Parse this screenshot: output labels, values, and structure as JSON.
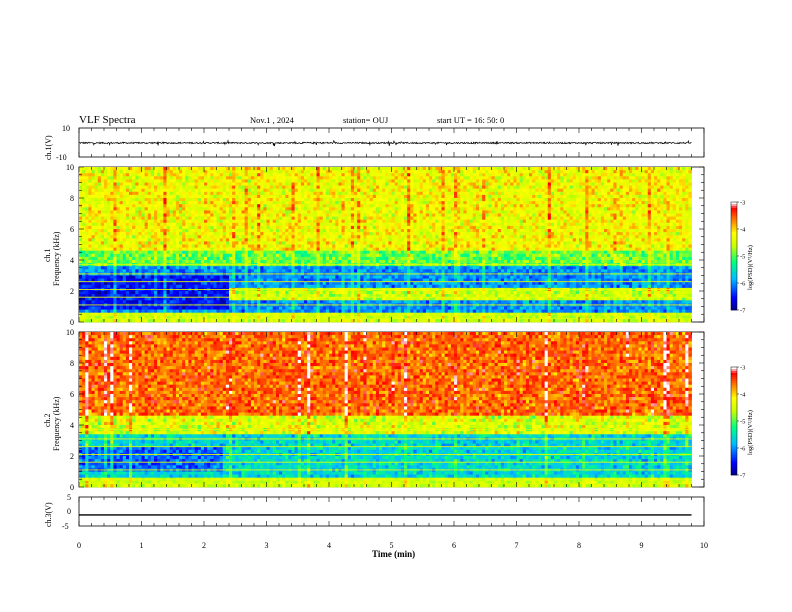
{
  "header": {
    "title": "VLF Spectra",
    "date": "Nov.1 , 2024",
    "station": "station= OUJ",
    "start": "start UT = 16: 50: 0"
  },
  "chart_data": [
    {
      "type": "line",
      "title": "",
      "ylabel": "ch.1(V)",
      "ylim": [
        -10,
        10
      ],
      "y_tick_labels": [
        "10",
        "-10"
      ],
      "description_values": {
        "baseline": -0.3,
        "amplitude_range": [
          -2.5,
          1.5
        ]
      },
      "x": [
        0,
        10
      ],
      "xlim": [
        0,
        10
      ]
    },
    {
      "type": "heatmap",
      "ylabel": "ch.1\nFrequency (kHz)",
      "ylabel_parts": [
        "ch.1",
        "Frequency (kHz)"
      ],
      "ylim": [
        0,
        10
      ],
      "y_tick_labels": [
        "0",
        "2",
        "4",
        "6",
        "8",
        "10"
      ],
      "xlim": [
        0,
        10
      ],
      "data_extent_x": [
        0,
        9.8
      ],
      "colorbar": {
        "label": "log(PSD)(V²/Hz)",
        "ticks": [
          "-3",
          "-4",
          "-5",
          "-6",
          "-7"
        ],
        "range": [
          -7,
          -3
        ]
      }
    },
    {
      "type": "heatmap",
      "ylabel": "ch.2\nFrequency (kHz)",
      "ylabel_parts": [
        "ch.2",
        "Frequency (kHz)"
      ],
      "ylim": [
        0,
        10
      ],
      "y_tick_labels": [
        "0",
        "2",
        "4",
        "6",
        "8",
        "10"
      ],
      "xlim": [
        0,
        10
      ],
      "data_extent_x": [
        0,
        9.8
      ],
      "colorbar": {
        "label": "log(PSD)(V²/Hz)",
        "ticks": [
          "-3",
          "-4",
          "-5",
          "-6",
          "-7"
        ],
        "range": [
          -7,
          -3
        ]
      }
    },
    {
      "type": "line",
      "ylabel": "ch.3(V)",
      "ylim": [
        -5,
        5
      ],
      "y_tick_labels": [
        "5",
        "0",
        "-5"
      ],
      "x": [
        0,
        9.8
      ],
      "y": [
        -1.2,
        -1.2
      ],
      "xlim": [
        0,
        10
      ]
    }
  ],
  "x_axis": {
    "label": "Time (min)",
    "tick_labels": [
      "0",
      "1",
      "2",
      "3",
      "4",
      "5",
      "6",
      "7",
      "8",
      "9",
      "10"
    ]
  },
  "colors": {
    "colormap": [
      "#000080",
      "#0000ff",
      "#00bfff",
      "#00ff80",
      "#ffff00",
      "#ff8000",
      "#ff0000",
      "#ffffff"
    ]
  }
}
